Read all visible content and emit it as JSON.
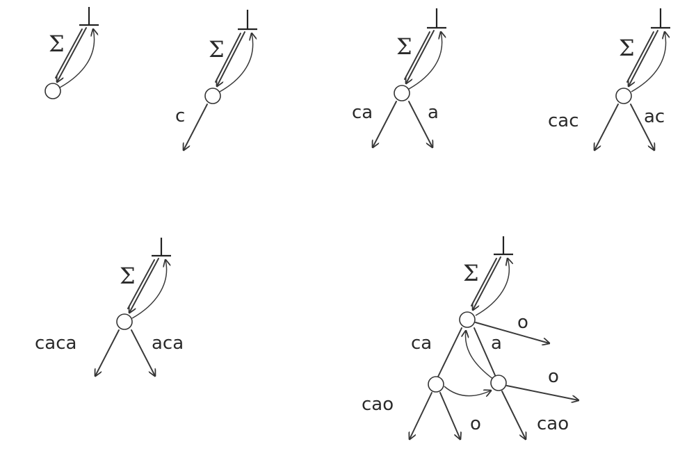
{
  "symbols": {
    "bottom": "⊥",
    "sigma": "Σ"
  },
  "panels": [
    {
      "edge_labels": []
    },
    {
      "edge_labels": [
        "c"
      ]
    },
    {
      "edge_labels": [
        "ca",
        "a"
      ]
    },
    {
      "edge_labels": [
        "cac",
        "ac"
      ]
    },
    {
      "edge_labels": [
        "caca",
        "aca"
      ]
    },
    {
      "edge_labels": [
        "ca",
        "a",
        "o",
        "o",
        "cao",
        "o",
        "cao"
      ]
    }
  ]
}
